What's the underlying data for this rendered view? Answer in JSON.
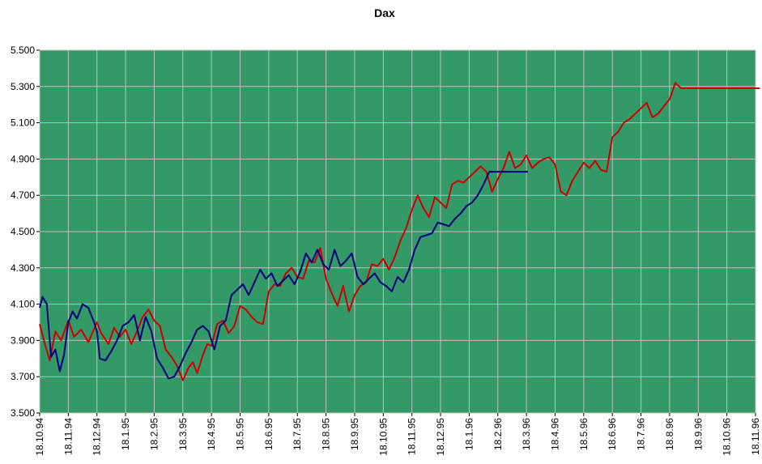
{
  "chart_data": {
    "type": "line",
    "title": "Dax",
    "xlabel": "",
    "ylabel": "",
    "ylim": [
      3500,
      5500
    ],
    "y_ticks": [
      3500,
      3700,
      3900,
      4100,
      4300,
      4500,
      4700,
      4900,
      5100,
      5300,
      5500
    ],
    "y_tick_labels": [
      "3.500",
      "3.700",
      "3.900",
      "4.100",
      "4.300",
      "4.500",
      "4.700",
      "4.900",
      "5.100",
      "5.300",
      "5.500"
    ],
    "x_tick_labels": [
      "18.10.94",
      "18.11.94",
      "18.12.94",
      "18.1.95",
      "18.2.95",
      "18.3.95",
      "18.4.95",
      "18.5.95",
      "18.6.95",
      "18.7.95",
      "18.8.95",
      "18.9.95",
      "18.10.95",
      "18.11.95",
      "18.12.95",
      "18.1.96",
      "18.2.96",
      "18.3.96",
      "18.4.96",
      "18.5.96",
      "18.6.96",
      "18.7.96",
      "18.8.96",
      "18.9.96",
      "18.10.96",
      "18.11.96"
    ],
    "x_unit": "month index from 18.10.94",
    "grid": true,
    "legend": "none",
    "background_color": "#339966",
    "grid_color": "#c0c0c0",
    "series": [
      {
        "color": "#cc0000",
        "x": [
          0.0,
          0.2,
          0.35,
          0.55,
          0.75,
          1.0,
          1.2,
          1.45,
          1.7,
          2.0,
          2.15,
          2.4,
          2.6,
          2.8,
          3.0,
          3.2,
          3.4,
          3.6,
          3.8,
          4.0,
          4.2,
          4.4,
          4.6,
          4.8,
          5.0,
          5.2,
          5.35,
          5.5,
          5.7,
          5.85,
          6.0,
          6.2,
          6.4,
          6.6,
          6.8,
          7.0,
          7.2,
          7.4,
          7.6,
          7.8,
          8.0,
          8.2,
          8.4,
          8.6,
          8.8,
          9.0,
          9.2,
          9.4,
          9.6,
          9.8,
          10.0,
          10.2,
          10.4,
          10.6,
          10.8,
          11.0,
          11.2,
          11.4,
          11.6,
          11.8,
          12.0,
          12.2,
          12.4,
          12.6,
          12.8,
          13.0,
          13.2,
          13.4,
          13.6,
          13.8,
          14.0,
          14.2,
          14.4,
          14.6,
          14.8,
          15.0,
          15.2,
          15.4,
          15.6,
          15.8,
          16.0,
          16.2,
          16.4,
          16.6,
          16.8,
          17.0,
          17.2,
          17.4,
          17.6,
          17.8,
          18.0,
          18.2,
          18.4,
          18.6,
          18.8,
          19.0,
          19.2,
          19.4,
          19.6,
          19.8,
          20.0,
          20.2,
          20.4,
          20.6,
          20.8,
          21.0,
          21.2,
          21.4,
          21.6,
          21.8,
          22.0,
          22.2,
          22.4,
          22.6,
          22.8,
          23.0,
          23.2,
          23.4,
          23.6,
          23.8,
          24.0,
          24.2,
          24.4,
          24.6,
          24.8,
          25.0,
          25.15
        ],
        "y": [
          3990,
          3870,
          3790,
          3950,
          3900,
          4010,
          3920,
          3960,
          3890,
          4000,
          3940,
          3880,
          3970,
          3920,
          3960,
          3880,
          3950,
          4030,
          4070,
          4010,
          3980,
          3850,
          3810,
          3760,
          3680,
          3750,
          3780,
          3720,
          3820,
          3880,
          3870,
          3990,
          4010,
          3940,
          3980,
          4090,
          4070,
          4030,
          4000,
          3990,
          4170,
          4210,
          4200,
          4270,
          4300,
          4250,
          4240,
          4340,
          4330,
          4410,
          4240,
          4160,
          4090,
          4200,
          4060,
          4150,
          4200,
          4220,
          4320,
          4310,
          4350,
          4290,
          4360,
          4450,
          4520,
          4620,
          4700,
          4630,
          4580,
          4690,
          4660,
          4630,
          4760,
          4780,
          4770,
          4800,
          4830,
          4860,
          4830,
          4720,
          4790,
          4850,
          4940,
          4850,
          4870,
          4920,
          4850,
          4880,
          4900,
          4910,
          4870,
          4720,
          4700,
          4780,
          4830,
          4880,
          4850,
          4890,
          4840,
          4830,
          5020,
          5050,
          5100,
          5120,
          5150,
          5180,
          5210,
          5130,
          5150,
          5190,
          5230,
          5320,
          5290,
          5290,
          5290,
          5290,
          5290,
          5290,
          5290,
          5290,
          5290,
          5290,
          5290,
          5290,
          5290,
          5290,
          5290
        ],
        "y_display_from": 0
      },
      {
        "color": "#000080",
        "x": [
          0.0,
          0.1,
          0.25,
          0.4,
          0.55,
          0.7,
          0.85,
          1.0,
          1.15,
          1.3,
          1.5,
          1.7,
          1.9,
          2.0,
          2.1,
          2.3,
          2.5,
          2.7,
          2.9,
          3.1,
          3.3,
          3.5,
          3.7,
          3.9,
          4.1,
          4.3,
          4.5,
          4.7,
          4.9,
          5.1,
          5.3,
          5.5,
          5.7,
          5.9,
          6.1,
          6.3,
          6.5,
          6.7,
          6.9,
          7.1,
          7.3,
          7.5,
          7.7,
          7.9,
          8.1,
          8.3,
          8.5,
          8.7,
          8.9,
          9.1,
          9.3,
          9.5,
          9.7,
          9.9,
          10.1,
          10.3,
          10.5,
          10.7,
          10.9,
          11.1,
          11.3,
          11.5,
          11.7,
          11.9,
          12.1,
          12.3,
          12.5,
          12.7,
          12.9,
          13.1,
          13.3,
          13.5,
          13.7,
          13.9,
          14.1,
          14.3,
          14.5,
          14.7,
          14.9,
          15.1,
          15.3,
          15.5,
          15.7,
          15.9,
          16.1,
          16.3,
          16.5,
          16.7,
          16.9,
          17.05
        ],
        "y": [
          4080,
          4140,
          4100,
          3810,
          3850,
          3730,
          3820,
          4000,
          4060,
          4020,
          4100,
          4080,
          4000,
          3950,
          3800,
          3790,
          3840,
          3900,
          3980,
          4000,
          4040,
          3900,
          4030,
          3950,
          3800,
          3750,
          3690,
          3700,
          3760,
          3830,
          3890,
          3960,
          3980,
          3950,
          3850,
          3980,
          4010,
          4150,
          4180,
          4210,
          4150,
          4220,
          4290,
          4240,
          4270,
          4200,
          4230,
          4260,
          4210,
          4280,
          4380,
          4330,
          4400,
          4320,
          4290,
          4400,
          4310,
          4340,
          4380,
          4250,
          4210,
          4240,
          4270,
          4220,
          4200,
          4170,
          4250,
          4220,
          4290,
          4400,
          4470,
          4480,
          4490,
          4550,
          4540,
          4530,
          4570,
          4600,
          4640,
          4660,
          4700,
          4760,
          4830,
          4830,
          4830,
          4830,
          4830,
          4830,
          4830,
          4830
        ]
      }
    ]
  }
}
